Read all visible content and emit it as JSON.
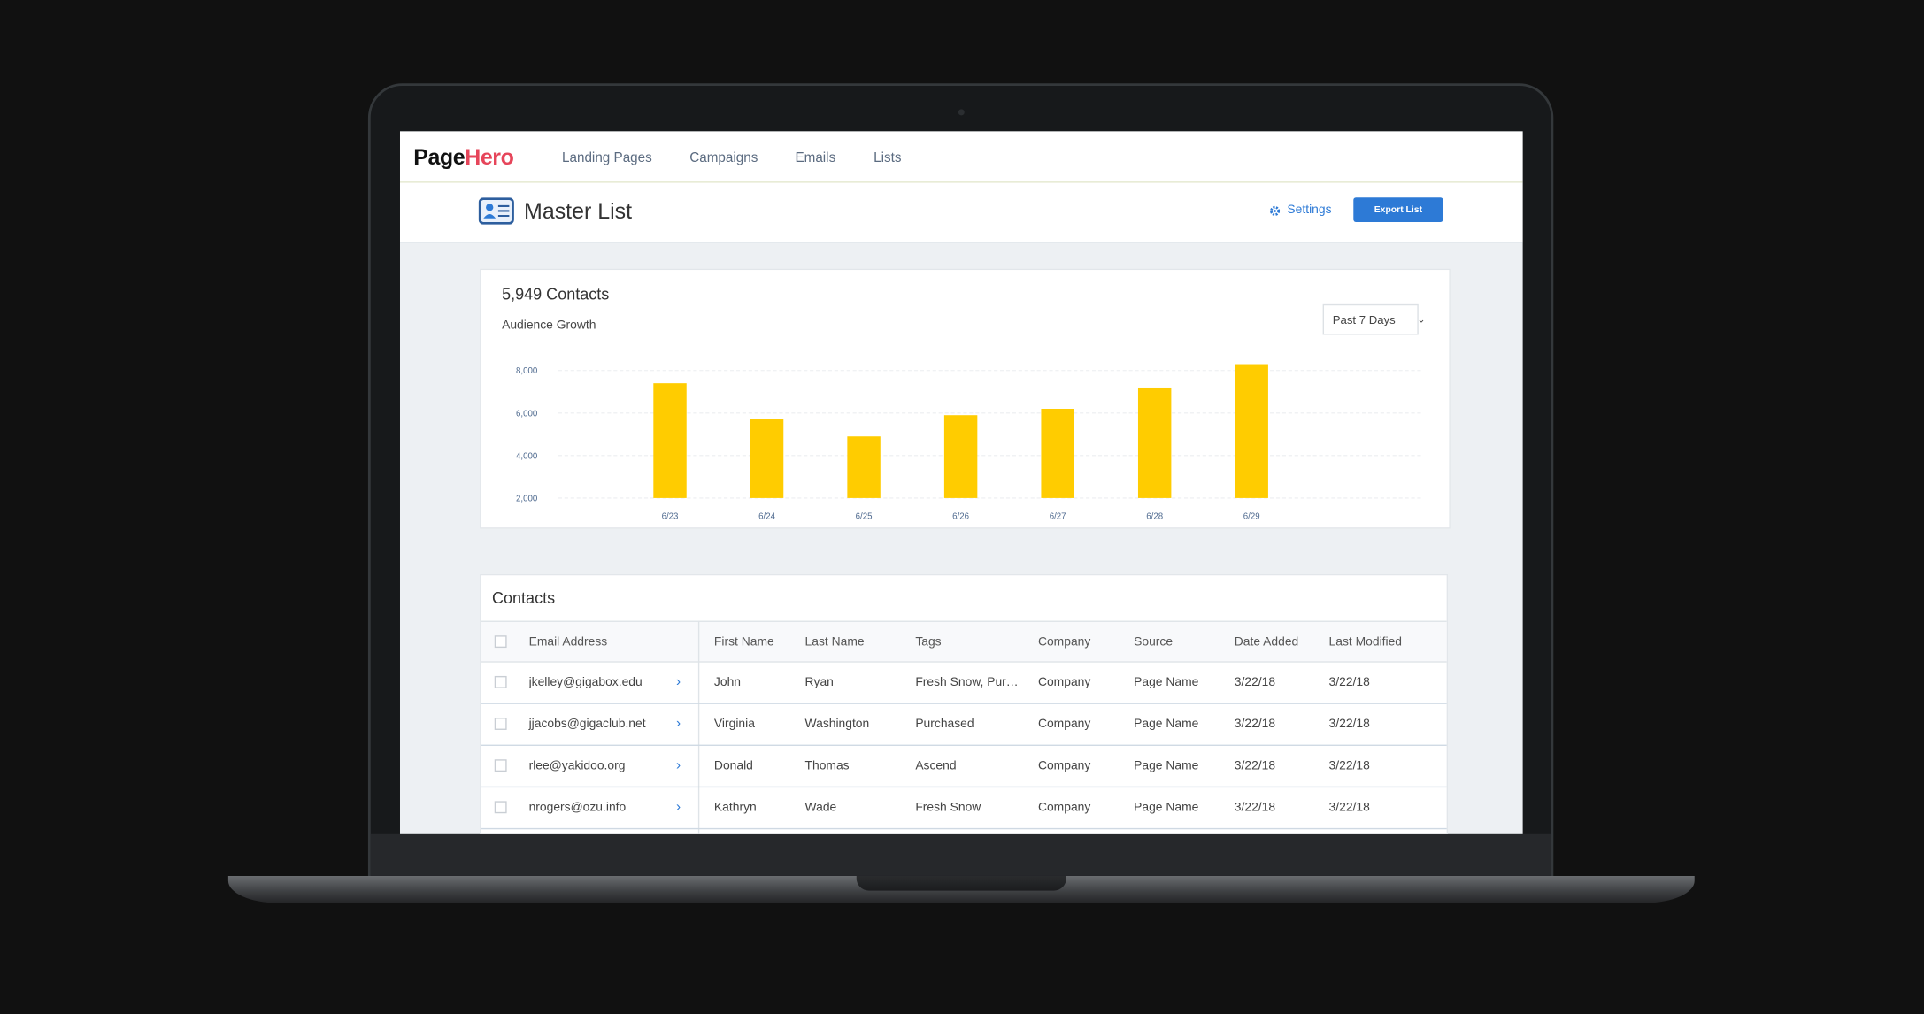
{
  "brand": {
    "part1": "Page",
    "part2": "Hero"
  },
  "nav": [
    "Landing Pages",
    "Campaigns",
    "Emails",
    "Lists"
  ],
  "header": {
    "title": "Master List",
    "settings": "Settings",
    "export": "Export List"
  },
  "summary": {
    "count": "5,949 Contacts",
    "subtitle": "Audience Growth",
    "range": "Past 7 Days"
  },
  "chart_data": {
    "type": "bar",
    "categories": [
      "6/23",
      "6/24",
      "6/25",
      "6/26",
      "6/27",
      "6/28",
      "6/29"
    ],
    "values": [
      7400,
      5700,
      4900,
      5900,
      6200,
      7200,
      8300
    ],
    "color": "#ffcc00",
    "ylim": [
      2000,
      8500
    ],
    "yticks": [
      {
        "value": 2000,
        "label": "2,000"
      },
      {
        "value": 4000,
        "label": "4,000"
      },
      {
        "value": 6000,
        "label": "6,000"
      },
      {
        "value": 8000,
        "label": "8,000"
      }
    ],
    "grid": true
  },
  "contacts": {
    "title": "Contacts",
    "columns": [
      "Email Address",
      "First Name",
      "Last Name",
      "Tags",
      "Company",
      "Source",
      "Date Added",
      "Last Modified"
    ],
    "rows": [
      [
        "jkelley@gigabox.edu",
        "John",
        "Ryan",
        "Fresh Snow, Pur…",
        "Company",
        "Page Name",
        "3/22/18",
        "3/22/18"
      ],
      [
        "jjacobs@gigaclub.net",
        "Virginia",
        "Washington",
        "Purchased",
        "Company",
        "Page Name",
        "3/22/18",
        "3/22/18"
      ],
      [
        "rlee@yakidoo.org",
        "Donald",
        "Thomas",
        "Ascend",
        "Company",
        "Page Name",
        "3/22/18",
        "3/22/18"
      ],
      [
        "nrogers@ozu.info",
        "Kathryn",
        "Wade",
        "Fresh Snow",
        "Company",
        "Page Name",
        "3/22/18",
        "3/22/18"
      ]
    ]
  }
}
